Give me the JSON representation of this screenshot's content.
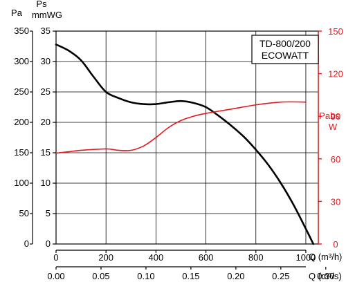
{
  "chart_data": {
    "type": "line",
    "legend_box": {
      "line1": "TD-800/200",
      "line2": "ECOWATT",
      "placement": "top-right"
    },
    "grid": true,
    "colors": {
      "pressure": "#000000",
      "power": "#e8161b",
      "grid": "#000000",
      "axis": "#000000"
    },
    "x_axis_m3h": {
      "label": "Q (m³/h)",
      "range": [
        0,
        1050
      ],
      "ticks": [
        0,
        200,
        400,
        600,
        800,
        1000
      ],
      "tick_labels": [
        "0",
        "200",
        "400",
        "600",
        "800",
        "1000"
      ]
    },
    "x_axis_m3s": {
      "label": "Q (m³/s)",
      "range": [
        0,
        0.2917
      ],
      "ticks": [
        0,
        0.05,
        0.1,
        0.15,
        0.2,
        0.25,
        0.3
      ],
      "tick_labels": [
        "0.00",
        "0.05",
        "0.10",
        "0.15",
        "0.20",
        "0.25",
        "0.30"
      ]
    },
    "y_axis_pa": {
      "label": "Pa",
      "range": [
        0,
        350
      ],
      "ticks": [
        0,
        50,
        100,
        150,
        200,
        250,
        300,
        350
      ],
      "tick_labels": [
        "0",
        "50",
        "100",
        "150",
        "200",
        "250",
        "300",
        "350"
      ]
    },
    "y_axis_mmwg": {
      "label_line1": "Ps",
      "label_line2": "mmWG",
      "range": [
        0,
        35
      ],
      "ticks": [
        0,
        5,
        10,
        15,
        20,
        25,
        30,
        35
      ],
      "tick_labels": [
        "0",
        "5",
        "10",
        "15",
        "20",
        "25",
        "30",
        "35"
      ]
    },
    "y_axis_power": {
      "label_line1": "Pabs",
      "label_line2": "W",
      "range": [
        0,
        150
      ],
      "ticks": [
        0,
        30,
        60,
        90,
        120,
        150
      ],
      "tick_labels": [
        "0",
        "30",
        "60",
        "90",
        "120",
        "150"
      ]
    },
    "series": [
      {
        "axis": "pressure_pa",
        "x": [
          0,
          50,
          100,
          150,
          200,
          250,
          300,
          350,
          400,
          450,
          500,
          550,
          600,
          650,
          700,
          750,
          800,
          850,
          900,
          950,
          1000,
          1030
        ],
        "y": [
          328,
          318,
          302,
          275,
          250,
          240,
          233,
          230,
          230,
          233,
          235,
          232,
          225,
          211,
          195,
          177,
          155,
          130,
          100,
          65,
          25,
          0
        ]
      },
      {
        "axis": "power_w",
        "x": [
          0,
          50,
          100,
          200,
          250,
          300,
          350,
          400,
          450,
          500,
          550,
          600,
          700,
          800,
          900,
          1000
        ],
        "y": [
          64,
          65,
          66,
          67,
          66,
          66,
          69,
          75,
          82,
          87,
          90,
          92,
          95,
          98,
          100,
          100
        ]
      }
    ]
  }
}
